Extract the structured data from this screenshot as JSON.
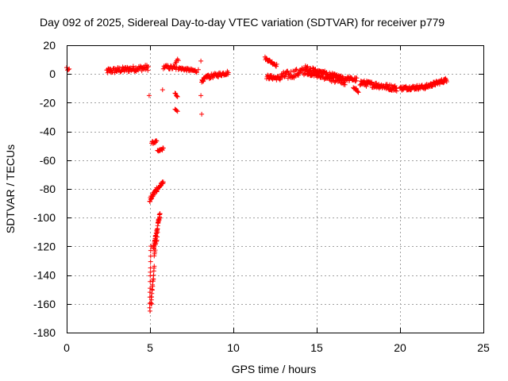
{
  "colors": {
    "series": "#ff0000",
    "grid": "#a0a0a0",
    "frame": "#000000"
  },
  "chart_data": {
    "type": "scatter",
    "title": "Day 092 of 2025, Sidereal Day-to-day VTEC variation (SDTVAR) for receiver p779",
    "xlabel": "GPS time / hours",
    "ylabel": "SDTVAR / TECUs",
    "xlim": [
      0,
      25
    ],
    "ylim": [
      -180,
      20
    ],
    "xticks": [
      0,
      5,
      10,
      15,
      20,
      25
    ],
    "yticks": [
      -180,
      -160,
      -140,
      -120,
      -100,
      -80,
      -60,
      -40,
      -20,
      0,
      20
    ],
    "grid": true,
    "marker": "+",
    "series": [
      {
        "name": "SDTVAR",
        "segments": [
          {
            "x0": 0.0,
            "x1": 0.15,
            "y0": 4,
            "y1": 2,
            "step": 0.05,
            "jitter": 1.5
          },
          {
            "x0": 2.4,
            "x1": 4.9,
            "y0": 2,
            "y1": 4.5,
            "step": 0.03,
            "jitter": 2.0
          },
          {
            "x0": 4.98,
            "x1": 5.05,
            "y0": -163,
            "y1": -120,
            "step": 0.006,
            "jitter": 1.0
          },
          {
            "x0": 5.05,
            "x1": 5.25,
            "y0": -160,
            "y1": -135,
            "step": 0.012,
            "jitter": 2.0
          },
          {
            "x0": 5.2,
            "x1": 5.6,
            "y0": -122,
            "y1": -97,
            "step": 0.01,
            "jitter": 2.0
          },
          {
            "x0": 5.25,
            "x1": 5.45,
            "y0": -125,
            "y1": -112,
            "step": 0.02,
            "jitter": 2.0
          },
          {
            "x0": 4.98,
            "x1": 5.4,
            "y0": -88,
            "y1": -80,
            "step": 0.02,
            "jitter": 1.5
          },
          {
            "x0": 5.4,
            "x1": 5.8,
            "y0": -81,
            "y1": -75,
            "step": 0.02,
            "jitter": 1.0
          },
          {
            "x0": 5.1,
            "x1": 5.4,
            "y0": -48,
            "y1": -47,
            "step": 0.03,
            "jitter": 0.8
          },
          {
            "x0": 5.45,
            "x1": 5.8,
            "y0": -54,
            "y1": -52,
            "step": 0.03,
            "jitter": 0.8
          },
          {
            "x0": 5.8,
            "x1": 6.6,
            "y0": 5,
            "y1": 4,
            "step": 0.04,
            "jitter": 1.5
          },
          {
            "x0": 6.5,
            "x1": 6.65,
            "y0": -14,
            "y1": -15,
            "step": 0.04,
            "jitter": 1.0
          },
          {
            "x0": 6.5,
            "x1": 6.65,
            "y0": -24,
            "y1": -26,
            "step": 0.05,
            "jitter": 1.0
          },
          {
            "x0": 6.5,
            "x1": 6.7,
            "y0": 8,
            "y1": 10,
            "step": 0.05,
            "jitter": 1.0
          },
          {
            "x0": 6.7,
            "x1": 7.8,
            "y0": 4,
            "y1": 2,
            "step": 0.03,
            "jitter": 1.0
          },
          {
            "x0": 8.1,
            "x1": 8.5,
            "y0": -5,
            "y1": -1,
            "step": 0.02,
            "jitter": 1.0
          },
          {
            "x0": 8.5,
            "x1": 9.7,
            "y0": -2,
            "y1": 1,
            "step": 0.03,
            "jitter": 1.5
          },
          {
            "x0": 11.9,
            "x1": 12.6,
            "y0": 11,
            "y1": 6,
            "step": 0.03,
            "jitter": 1.0
          },
          {
            "x0": 12.0,
            "x1": 12.8,
            "y0": -2,
            "y1": -3,
            "step": 0.03,
            "jitter": 1.5
          },
          {
            "x0": 12.8,
            "x1": 14.3,
            "y0": -2,
            "y1": 2,
            "step": 0.03,
            "jitter": 3.0
          },
          {
            "x0": 14.3,
            "x1": 16.7,
            "y0": 3,
            "y1": -5,
            "step": 0.015,
            "jitter": 3.0
          },
          {
            "x0": 16.7,
            "x1": 17.4,
            "y0": -3,
            "y1": -4,
            "step": 0.03,
            "jitter": 1.5
          },
          {
            "x0": 17.2,
            "x1": 17.5,
            "y0": -10,
            "y1": -12,
            "step": 0.04,
            "jitter": 1.0
          },
          {
            "x0": 17.6,
            "x1": 19.8,
            "y0": -6,
            "y1": -10,
            "step": 0.025,
            "jitter": 2.0
          },
          {
            "x0": 20.0,
            "x1": 21.5,
            "y0": -10,
            "y1": -9,
            "step": 0.025,
            "jitter": 1.5
          },
          {
            "x0": 21.5,
            "x1": 22.8,
            "y0": -9,
            "y1": -4,
            "step": 0.025,
            "jitter": 1.5
          }
        ],
        "points": [
          {
            "x": 4.95,
            "y": -15
          },
          {
            "x": 5.75,
            "y": -11
          },
          {
            "x": 8.05,
            "y": -15
          },
          {
            "x": 8.1,
            "y": -28
          },
          {
            "x": 8.05,
            "y": 9
          },
          {
            "x": 7.9,
            "y": 3
          },
          {
            "x": 5.1,
            "y": -160
          },
          {
            "x": 5.0,
            "y": -165
          }
        ]
      }
    ]
  }
}
